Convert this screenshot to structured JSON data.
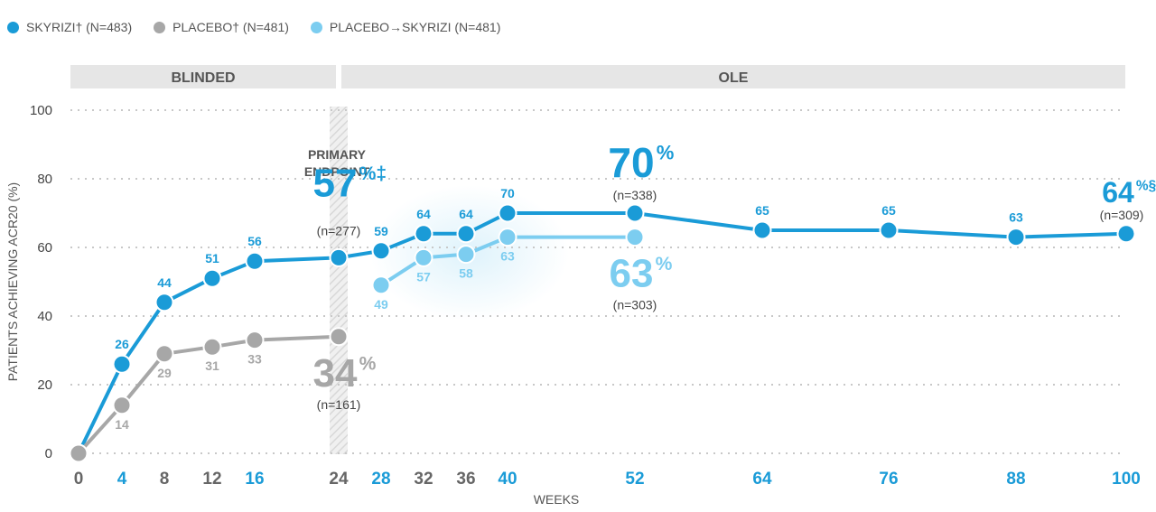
{
  "legend": [
    {
      "label": "SKYRIZI† (N=483)",
      "color": "#1a9bd7"
    },
    {
      "label": "PLACEBO† (N=481)",
      "color": "#a7a7a7"
    },
    {
      "label": "PLACEBO→SKYRIZI (N=481)",
      "color": "#7ccdf0"
    }
  ],
  "bands": {
    "blinded": "BLINDED",
    "ole": "OLE"
  },
  "primary_endpoint": [
    "PRIMARY",
    "ENDPOINT"
  ],
  "chart_data": {
    "type": "line",
    "ylabel": "PATIENTS ACHIEVING ACR20 (%)",
    "xlabel": "WEEKS",
    "ylim": [
      0,
      100
    ],
    "yticks": [
      0,
      20,
      40,
      60,
      80,
      100
    ],
    "xticks": [
      "0",
      "4",
      "8",
      "12",
      "16",
      "24",
      "28",
      "32",
      "36",
      "40",
      "52",
      "64",
      "76",
      "88",
      "100"
    ],
    "grid": true,
    "series": [
      {
        "name": "SKYRIZI† (N=483)",
        "color": "#1a9bd7",
        "x": [
          0,
          4,
          8,
          12,
          16,
          24,
          28,
          32,
          36,
          40,
          52,
          64,
          76,
          88,
          100
        ],
        "y": [
          0,
          26,
          44,
          51,
          56,
          57,
          59,
          64,
          64,
          70,
          70,
          65,
          65,
          63,
          64
        ],
        "labels": [
          "",
          "26",
          "44",
          "51",
          "56",
          "",
          "59",
          "64",
          "64",
          "70",
          "",
          "65",
          "65",
          "63",
          ""
        ]
      },
      {
        "name": "PLACEBO† (N=481)",
        "color": "#a7a7a7",
        "x": [
          0,
          4,
          8,
          12,
          16,
          24
        ],
        "y": [
          0,
          14,
          29,
          31,
          33,
          34
        ],
        "labels": [
          "",
          "14",
          "29",
          "31",
          "33",
          ""
        ]
      },
      {
        "name": "PLACEBO→SKYRIZI (N=481)",
        "color": "#7ccdf0",
        "x": [
          28,
          32,
          36,
          40,
          52
        ],
        "y": [
          49,
          57,
          58,
          63,
          63
        ],
        "labels": [
          "49",
          "57",
          "58",
          "63",
          ""
        ]
      }
    ],
    "callouts": [
      {
        "series": 0,
        "x": 24,
        "value": "57",
        "sup": "%‡",
        "n": "(n=277)"
      },
      {
        "series": 1,
        "x": 24,
        "value": "34",
        "sup": "%",
        "n": "(n=161)"
      },
      {
        "series": 0,
        "x": 52,
        "value": "70",
        "sup": "%",
        "n": "(n=338)"
      },
      {
        "series": 2,
        "x": 52,
        "value": "63",
        "sup": "%",
        "n": "(n=303)"
      },
      {
        "series": 0,
        "x": 100,
        "value": "64",
        "sup": "%§",
        "n": "(n=309)"
      }
    ]
  }
}
